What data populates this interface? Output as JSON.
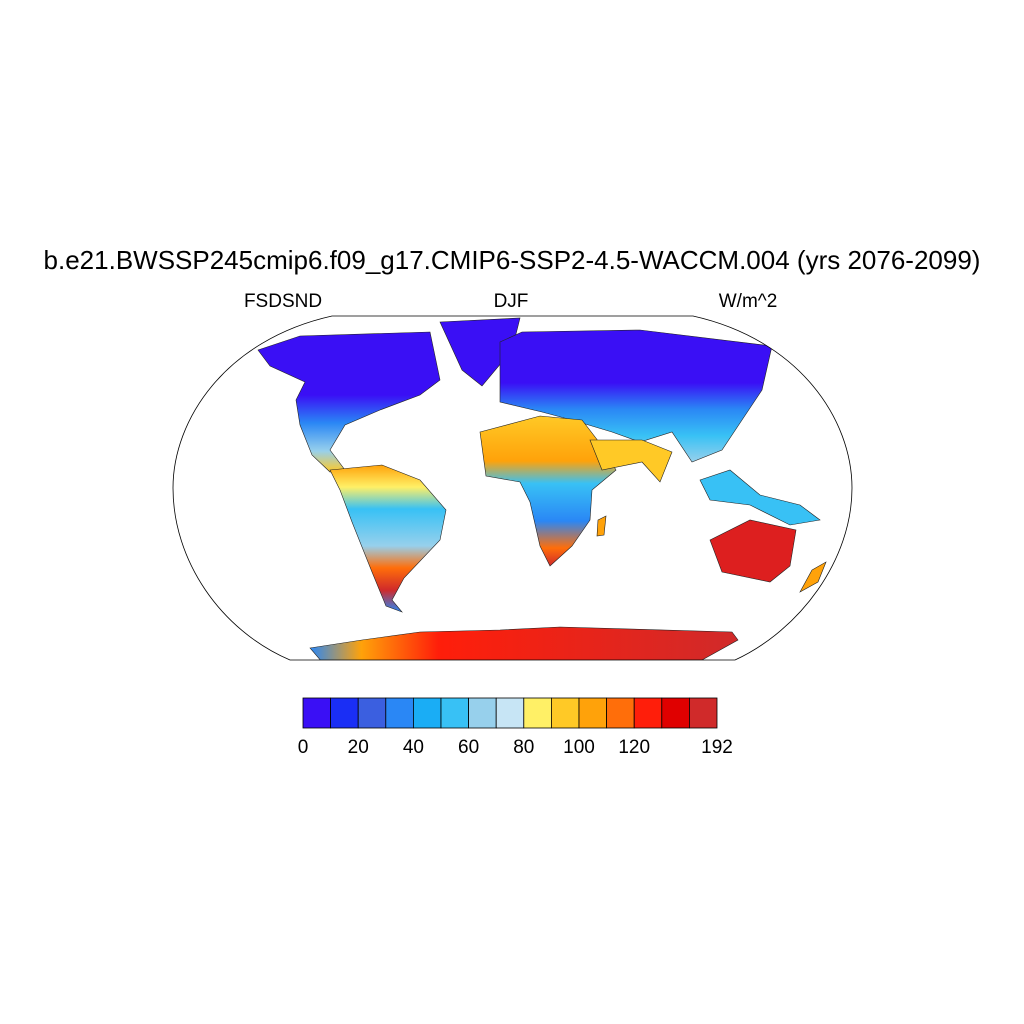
{
  "title": "b.e21.BWSSP245cmip6.f09_g17.CMIP6-SSP2-4.5-WACCM.004 (yrs 2076-2099)",
  "left_label": "FSDSND",
  "center_label": "DJF",
  "right_label": "W/m^2",
  "colorbar": {
    "colors": [
      "#3a0ff5",
      "#1a2ef5",
      "#3b5fe0",
      "#2a87f5",
      "#1aadf5",
      "#38c1f5",
      "#97d0ec",
      "#c7e5f5",
      "#fff066",
      "#ffc926",
      "#ffa20a",
      "#ff6e0a",
      "#ff1e0a",
      "#e00000",
      "#d02a2a"
    ],
    "ticks": [
      0,
      20,
      40,
      60,
      80,
      100,
      120,
      192
    ]
  }
}
